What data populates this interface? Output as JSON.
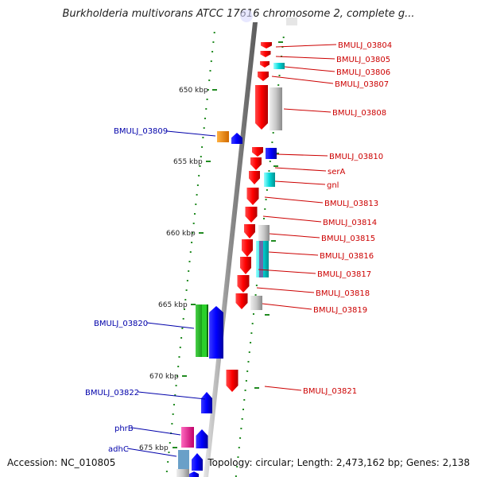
{
  "title": "Burkholderia multivorans ATCC 17616 chromosome 2, complete g...",
  "footer": {
    "accession": "Accession: NC_010805",
    "summary": "Topology: circular; Length: 2,473,162 bp; Genes: 2,138"
  },
  "scale_ticks": [
    {
      "label": "650 kbp"
    },
    {
      "label": "655 kbp"
    },
    {
      "label": "660 kbp"
    },
    {
      "label": "665 kbp"
    },
    {
      "label": "670 kbp"
    },
    {
      "label": "675 kbp"
    }
  ],
  "genes_right": [
    {
      "label": "BMULJ_03804",
      "color": "#ff0000"
    },
    {
      "label": "BMULJ_03805",
      "color": "#ff0000"
    },
    {
      "label": "BMULJ_03806",
      "color": "#00e0e0"
    },
    {
      "label": "BMULJ_03807",
      "color": "#ff0000"
    },
    {
      "label": "BMULJ_03808",
      "color": "#ff0000"
    },
    {
      "label": "BMULJ_03810",
      "color": "#0000ff"
    },
    {
      "label": "serA",
      "color": "#ff0000"
    },
    {
      "label": "gnl",
      "color": "#00e0e0"
    },
    {
      "label": "BMULJ_03813",
      "color": "#ff0000"
    },
    {
      "label": "BMULJ_03814",
      "color": "#ff0000"
    },
    {
      "label": "BMULJ_03815",
      "color": "#ff0000"
    },
    {
      "label": "BMULJ_03816",
      "color": "#ff0000"
    },
    {
      "label": "BMULJ_03817",
      "color": "#ff0000"
    },
    {
      "label": "BMULJ_03818",
      "color": "#ff0000"
    },
    {
      "label": "BMULJ_03819",
      "color": "#ff0000"
    },
    {
      "label": "BMULJ_03821",
      "color": "#ff0000"
    }
  ],
  "genes_left": [
    {
      "label": "BMULJ_03809",
      "color": "#ff8c00"
    },
    {
      "label": "BMULJ_03820",
      "color": "#20b020"
    },
    {
      "label": "BMULJ_03822",
      "color": "#0000ff"
    },
    {
      "label": "phrB",
      "color": "#ff1493"
    },
    {
      "label": "adhC",
      "color": "#0000ff"
    }
  ],
  "colors": {
    "forward_label": "#cc0000",
    "reverse_label": "#0000aa",
    "backbone": "#999999",
    "tick": "#228b22"
  }
}
